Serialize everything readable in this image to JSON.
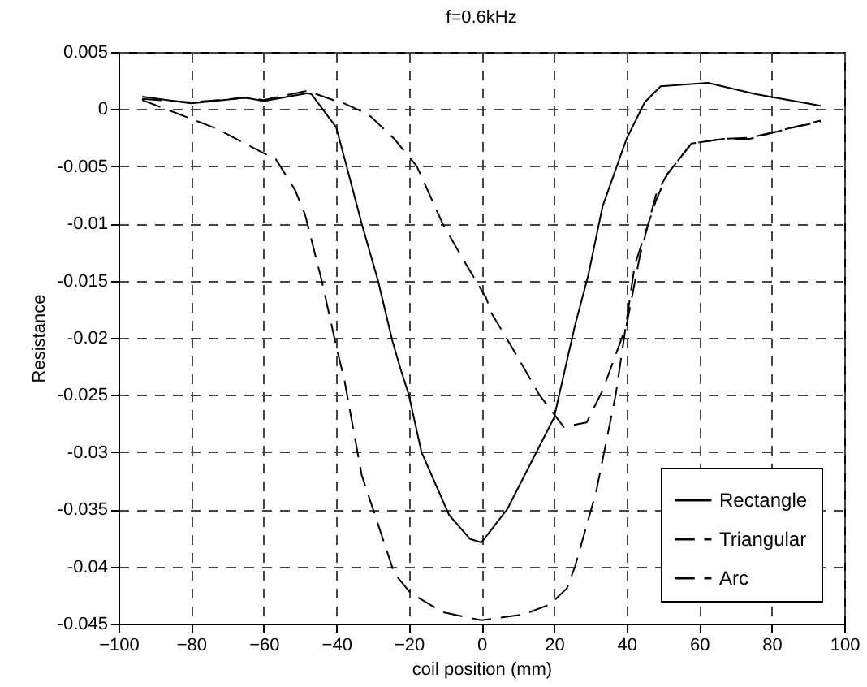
{
  "chart_data": {
    "type": "line",
    "title": "f=0.6kHz",
    "xlabel": "coil position (mm)",
    "ylabel": "Resistance",
    "xlim": [
      -100,
      100
    ],
    "xticks": [
      -100,
      -80,
      -60,
      -40,
      -20,
      0,
      20,
      40,
      60,
      80,
      100
    ],
    "ylim": [
      -0.045,
      0.005
    ],
    "yticks": [
      -0.045,
      -0.04,
      -0.035,
      -0.03,
      -0.025,
      -0.02,
      -0.015,
      -0.01,
      -0.005,
      0,
      0.005
    ],
    "grid": true,
    "legend": "bottom right",
    "marker": "none",
    "series": [
      {
        "name": "Rectangle",
        "color": "#000000",
        "line_style": "solid",
        "x": [
          -93.5,
          -80,
          -65,
          -60,
          -48,
          -46.8,
          -40,
          -37.4,
          -33,
          -28.5,
          -24.5,
          -22.3,
          -20,
          -16.5,
          -8.9,
          -3.1,
          0,
          7.1,
          20,
          25.8,
          29.4,
          33.4,
          40,
          45,
          49.4,
          62.4,
          75.7,
          93.5
        ],
        "values": [
          0.0011,
          0.0005,
          0.001,
          0.0007,
          0.0014,
          0.0013,
          -0.0016,
          -0.0047,
          -0.01,
          -0.015,
          -0.0203,
          -0.0227,
          -0.025,
          -0.03,
          -0.0355,
          -0.0376,
          -0.0379,
          -0.035,
          -0.027,
          -0.0189,
          -0.0146,
          -0.0085,
          -0.0026,
          0.0006,
          0.002,
          0.0023,
          0.0013,
          0.0003
        ]
      },
      {
        "name": "Triangular",
        "color": "#000000",
        "line_style": "dashed",
        "x": [
          -93.5,
          -80,
          -65,
          -60,
          -48,
          -40,
          -37.8,
          -31,
          -24,
          -17.8,
          -10.7,
          -5.3,
          1.3,
          2.7,
          8,
          16,
          22.7,
          29,
          33.4,
          40,
          43.7,
          48.1,
          51.2,
          57.9,
          66.8,
          74,
          84.6,
          93.5
        ],
        "values": [
          0.0009,
          0.0006,
          0.001,
          0.0008,
          0.0016,
          0.0007,
          0.0005,
          -0.0005,
          -0.0026,
          -0.005,
          -0.01,
          -0.013,
          -0.0165,
          -0.0178,
          -0.0206,
          -0.025,
          -0.0278,
          -0.0274,
          -0.0246,
          -0.0189,
          -0.0128,
          -0.0075,
          -0.0057,
          -0.003,
          -0.0026,
          -0.0025,
          -0.0017,
          -0.001
        ]
      },
      {
        "name": "Arc",
        "color": "#000000",
        "line_style": "dashed",
        "x": [
          -93.5,
          -73,
          -66.4,
          -56.6,
          -51.3,
          -48.6,
          -44,
          -39.6,
          -37.8,
          -33,
          -24,
          -19.6,
          -10.7,
          0,
          11.6,
          19,
          23.6,
          25.8,
          31.6,
          37,
          42.3,
          48.1,
          51.2,
          57.9,
          66.8,
          74,
          84.6,
          93.5
        ],
        "values": [
          0.0008,
          -0.0017,
          -0.0028,
          -0.0044,
          -0.0071,
          -0.0092,
          -0.015,
          -0.0213,
          -0.0236,
          -0.032,
          -0.0406,
          -0.0423,
          -0.044,
          -0.0447,
          -0.0442,
          -0.0433,
          -0.0419,
          -0.04,
          -0.0335,
          -0.025,
          -0.0136,
          -0.008,
          -0.0057,
          -0.003,
          -0.0026,
          -0.0026,
          -0.0017,
          -0.0011
        ]
      }
    ]
  }
}
